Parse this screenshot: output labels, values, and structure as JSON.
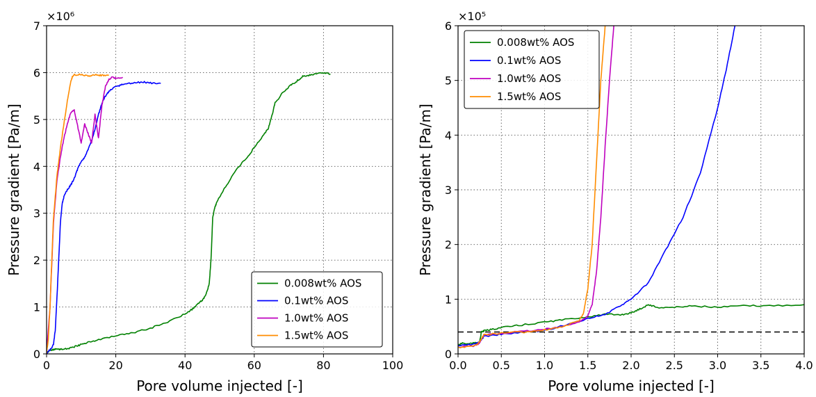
{
  "chart_data": [
    {
      "type": "line",
      "xlabel": "Pore volume injected [-]",
      "ylabel": "Pressure gradient [Pa/m]",
      "y_multiplier": "×10⁶",
      "xlim": [
        0,
        100
      ],
      "ylim": [
        0,
        7
      ],
      "x_ticks": [
        "0",
        "20",
        "40",
        "60",
        "80",
        "100"
      ],
      "y_ticks": [
        "0",
        "1",
        "2",
        "3",
        "4",
        "5",
        "6",
        "7"
      ],
      "grid": true,
      "legend_position": "lower-right",
      "series": [
        {
          "name": "0.008wt% AOS",
          "color": "#008000",
          "x": [
            0,
            0.5,
            1,
            2,
            3,
            4,
            6,
            8,
            10,
            12,
            15,
            20,
            25,
            30,
            35,
            40,
            42,
            44,
            45,
            46,
            47,
            47.5,
            48,
            48.5,
            49,
            50,
            52,
            55,
            58,
            60,
            62,
            64,
            65,
            66,
            68,
            70,
            72,
            74,
            76,
            78,
            80,
            82
          ],
          "y": [
            0.02,
            0.05,
            0.08,
            0.09,
            0.1,
            0.1,
            0.11,
            0.15,
            0.2,
            0.25,
            0.3,
            0.38,
            0.45,
            0.55,
            0.68,
            0.85,
            0.95,
            1.08,
            1.15,
            1.25,
            1.5,
            2.0,
            2.9,
            3.1,
            3.2,
            3.35,
            3.6,
            3.95,
            4.2,
            4.4,
            4.6,
            4.8,
            5.05,
            5.35,
            5.55,
            5.7,
            5.8,
            5.92,
            5.95,
            5.97,
            6.0,
            5.97
          ]
        },
        {
          "name": "0.1wt% AOS",
          "color": "#0000ff",
          "x": [
            0,
            1,
            2,
            2.5,
            3,
            3.5,
            4,
            4.5,
            5,
            6,
            7,
            8,
            9,
            10,
            11,
            12,
            13,
            14,
            15,
            16,
            17,
            18,
            20,
            22,
            25,
            28,
            30,
            33
          ],
          "y": [
            0.02,
            0.08,
            0.2,
            0.5,
            1.2,
            2.0,
            2.8,
            3.2,
            3.35,
            3.5,
            3.6,
            3.75,
            3.95,
            4.1,
            4.2,
            4.35,
            4.55,
            4.8,
            5.1,
            5.35,
            5.5,
            5.6,
            5.7,
            5.75,
            5.78,
            5.8,
            5.78,
            5.77
          ]
        },
        {
          "name": "1.0wt% AOS",
          "color": "#bf00bf",
          "x": [
            0,
            1,
            2,
            3,
            4,
            5,
            6,
            7,
            8,
            9,
            10,
            11,
            12,
            13,
            14,
            15,
            16,
            17,
            18,
            19,
            20,
            22
          ],
          "y": [
            0.02,
            1.0,
            2.8,
            3.7,
            4.2,
            4.6,
            4.9,
            5.15,
            5.2,
            4.85,
            4.5,
            4.9,
            4.7,
            4.5,
            5.1,
            4.6,
            5.3,
            5.7,
            5.85,
            5.9,
            5.88,
            5.9
          ]
        },
        {
          "name": "1.5wt% AOS",
          "color": "#ff8c00",
          "x": [
            0,
            0.5,
            1,
            1.5,
            2,
            3,
            4,
            5,
            6,
            7,
            7.5,
            8,
            10,
            12,
            14,
            16,
            18
          ],
          "y": [
            0.02,
            0.3,
            1.0,
            2.0,
            2.9,
            3.8,
            4.4,
            4.9,
            5.4,
            5.8,
            5.92,
            5.95,
            5.96,
            5.93,
            5.95,
            5.94,
            5.95
          ]
        }
      ]
    },
    {
      "type": "line",
      "xlabel": "Pore volume injected [-]",
      "ylabel": "Pressure gradient [Pa/m]",
      "y_multiplier": "×10⁵",
      "xlim": [
        0,
        4
      ],
      "ylim": [
        0,
        6
      ],
      "x_ticks": [
        "0.0",
        "0.5",
        "1.0",
        "1.5",
        "2.0",
        "2.5",
        "3.0",
        "3.5",
        "4.0"
      ],
      "y_ticks": [
        "0",
        "1",
        "2",
        "3",
        "4",
        "5",
        "6"
      ],
      "grid": true,
      "legend_position": "top-left",
      "reference_line": {
        "y": 0.4,
        "style": "dashed",
        "color": "#000000"
      },
      "series": [
        {
          "name": "0.008wt% AOS",
          "color": "#008000",
          "x": [
            0,
            0.05,
            0.1,
            0.2,
            0.25,
            0.27,
            0.3,
            0.4,
            0.5,
            0.7,
            1.0,
            1.2,
            1.5,
            1.7,
            1.9,
            2.0,
            2.1,
            2.2,
            2.3,
            2.5,
            2.7,
            3.0,
            3.3,
            3.6,
            4.0
          ],
          "y": [
            0.15,
            0.2,
            0.18,
            0.2,
            0.22,
            0.4,
            0.42,
            0.45,
            0.48,
            0.52,
            0.58,
            0.62,
            0.68,
            0.72,
            0.72,
            0.75,
            0.82,
            0.9,
            0.85,
            0.85,
            0.88,
            0.85,
            0.88,
            0.88,
            0.9
          ]
        },
        {
          "name": "0.1wt% AOS",
          "color": "#0000ff",
          "x": [
            0,
            0.2,
            0.25,
            0.3,
            0.5,
            0.8,
            1.0,
            1.3,
            1.5,
            1.7,
            1.9,
            2.0,
            2.2,
            2.4,
            2.6,
            2.8,
            3.0,
            3.1,
            3.2
          ],
          "y": [
            0.15,
            0.18,
            0.22,
            0.32,
            0.36,
            0.4,
            0.43,
            0.55,
            0.65,
            0.72,
            0.9,
            1.0,
            1.3,
            1.9,
            2.5,
            3.3,
            4.5,
            5.2,
            6.0
          ]
        },
        {
          "name": "1.0wt% AOS",
          "color": "#bf00bf",
          "x": [
            0,
            0.2,
            0.25,
            0.3,
            0.5,
            0.8,
            1.0,
            1.2,
            1.4,
            1.5,
            1.55,
            1.6,
            1.65,
            1.7,
            1.75,
            1.8
          ],
          "y": [
            0.12,
            0.15,
            0.2,
            0.35,
            0.38,
            0.42,
            0.45,
            0.5,
            0.58,
            0.7,
            0.9,
            1.5,
            2.5,
            3.8,
            5.0,
            6.0
          ]
        },
        {
          "name": "1.5wt% AOS",
          "color": "#ff8c00",
          "x": [
            0,
            0.2,
            0.25,
            0.3,
            0.5,
            0.8,
            1.0,
            1.2,
            1.4,
            1.45,
            1.5,
            1.55,
            1.6,
            1.65,
            1.7
          ],
          "y": [
            0.12,
            0.15,
            0.22,
            0.35,
            0.38,
            0.4,
            0.44,
            0.5,
            0.6,
            0.75,
            1.2,
            2.0,
            3.5,
            5.0,
            6.0
          ]
        }
      ]
    }
  ]
}
